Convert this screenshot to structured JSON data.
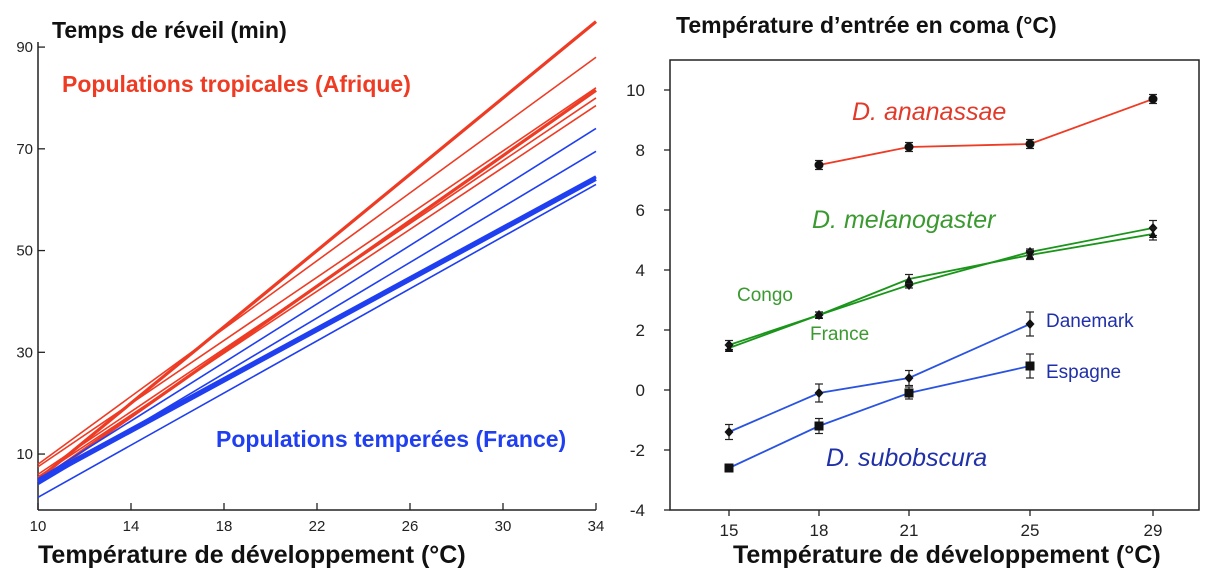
{
  "chart_data": [
    {
      "type": "line",
      "title": "Temps de réveil (min)",
      "xlabel": "Température de développement (°C)",
      "ylabel": "Temps de réveil (min)",
      "xlim": [
        10,
        34
      ],
      "ylim": [
        -1,
        91
      ],
      "x_ticks": [
        "10",
        "14",
        "18",
        "22",
        "26",
        "30",
        "34"
      ],
      "y_ticks": [
        "10",
        "30",
        "50",
        "70",
        "90"
      ],
      "grid": false,
      "groups": [
        {
          "label": "Populations tropicales (Afrique)",
          "color": "#ee3b24",
          "lines": [
            {
              "x": [
                10,
                34
              ],
              "y": [
                5.0,
                95.0
              ],
              "bold": true
            },
            {
              "x": [
                10,
                34
              ],
              "y": [
                4.5,
                81.5
              ],
              "bold": true
            },
            {
              "x": [
                10,
                34
              ],
              "y": [
                8.0,
                88.0
              ]
            },
            {
              "x": [
                10,
                34
              ],
              "y": [
                7.5,
                82.0
              ]
            },
            {
              "x": [
                10,
                34
              ],
              "y": [
                6.0,
                80.0
              ]
            },
            {
              "x": [
                10,
                34
              ],
              "y": [
                5.5,
                78.5
              ]
            }
          ]
        },
        {
          "label": "Populations temperées (France)",
          "color": "#1f3ff0",
          "lines": [
            {
              "x": [
                10,
                34
              ],
              "y": [
                5.0,
                74.0
              ]
            },
            {
              "x": [
                10,
                34
              ],
              "y": [
                4.0,
                69.5
              ]
            },
            {
              "x": [
                10,
                34
              ],
              "y": [
                5.0,
                64.5
              ],
              "bold": true
            },
            {
              "x": [
                10,
                34
              ],
              "y": [
                4.5,
                64.0
              ],
              "bold": true
            },
            {
              "x": [
                10,
                34
              ],
              "y": [
                1.5,
                63.0
              ]
            }
          ]
        }
      ]
    },
    {
      "type": "line",
      "title": "Température d’entrée en coma (°C)",
      "xlabel": "Température de développement (°C)",
      "ylabel": "Température d’entrée en coma (°C)",
      "x": [
        15,
        18,
        21,
        25,
        29
      ],
      "x_ticks": [
        "15",
        "18",
        "21",
        "25",
        "29"
      ],
      "y_ticks": [
        "-4",
        "-2",
        "0",
        "2",
        "4",
        "6",
        "8",
        "10"
      ],
      "ylim": [
        -4,
        11
      ],
      "grid": false,
      "species": [
        {
          "label": "D. ananassae",
          "color": "#ee3b24",
          "label_color": "#e23a2a"
        },
        {
          "label": "D. melanogaster",
          "color": "#1a951a",
          "label_color": "#3a9a30"
        },
        {
          "label": "D. subobscura",
          "color": "#2a53e0",
          "label_color": "#2030a8"
        }
      ],
      "series": [
        {
          "species": "D. ananassae",
          "name": "",
          "marker": "circle",
          "color": "#ee3b24",
          "x": [
            18,
            21,
            25,
            29
          ],
          "y": [
            7.5,
            8.1,
            8.2,
            9.7
          ],
          "err": [
            0.15,
            0.15,
            0.15,
            0.15
          ]
        },
        {
          "species": "D. melanogaster",
          "name": "Congo",
          "marker": "diamond",
          "color": "#1a951a",
          "x": [
            15,
            18,
            21,
            25,
            29
          ],
          "y": [
            1.5,
            2.5,
            3.5,
            4.6,
            5.4
          ],
          "err": [
            0.15,
            0.1,
            0.1,
            0.1,
            0.25
          ]
        },
        {
          "species": "D. melanogaster",
          "name": "France",
          "marker": "triangle",
          "color": "#1a951a",
          "x": [
            15,
            18,
            21,
            25,
            29
          ],
          "y": [
            1.4,
            2.5,
            3.7,
            4.5,
            5.2
          ],
          "err": [
            0.1,
            0.1,
            0.15,
            0.15,
            0.2
          ]
        },
        {
          "species": "D. subobscura",
          "name": "Danemark",
          "marker": "diamond",
          "color": "#2a53e0",
          "x": [
            15,
            18,
            21,
            25
          ],
          "y": [
            -1.4,
            -0.1,
            0.4,
            2.2
          ],
          "err": [
            0.25,
            0.3,
            0.25,
            0.4
          ]
        },
        {
          "species": "D. subobscura",
          "name": "Espagne",
          "marker": "square",
          "color": "#2a53e0",
          "x": [
            15,
            18,
            21,
            25
          ],
          "y": [
            -2.6,
            -1.2,
            -0.1,
            0.8
          ],
          "err": [
            0.1,
            0.25,
            0.2,
            0.4
          ]
        }
      ],
      "series_label_color": "#2030a8"
    }
  ]
}
